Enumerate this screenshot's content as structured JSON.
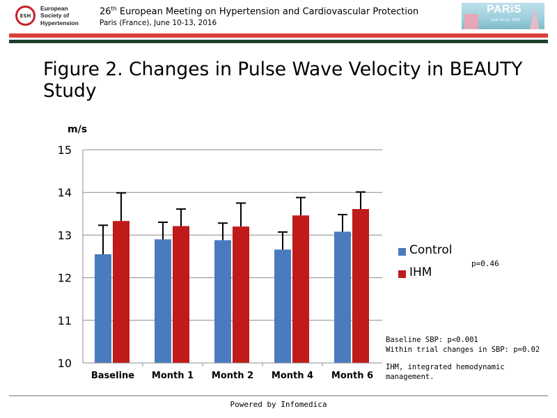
{
  "header": {
    "org_line1": "European",
    "org_line2": "Society of",
    "org_line3": "Hypertension",
    "org_abbrev": "ESH",
    "meeting_prefix": "26",
    "meeting_sup": "th",
    "meeting_rest": " European Meeting on Hypertension and Cardiovascular Protection",
    "meeting_subtitle": "Paris (France), June 10-13, 2016",
    "banner_word": "PARiS",
    "banner_date": "June 10-13, 2016"
  },
  "slide": {
    "title": "Figure 2. Changes in Pulse Wave Velocity in BEAUTY Study",
    "p_value": "p=0.46",
    "note_line1": "Baseline SBP: p<0.001",
    "note_line2": "Within trial changes in SBP: p=0.02",
    "note_line3": "IHM, integrated hemodynamic",
    "note_line4": "management."
  },
  "footer": {
    "text": "Powered by Infomedica"
  },
  "chart_data": {
    "type": "bar",
    "title": "",
    "ylabel": "m/s",
    "xlabel": "",
    "categories": [
      "Baseline",
      "Month 1",
      "Month 2",
      "Month 4",
      "Month 6"
    ],
    "ylim": [
      10,
      15
    ],
    "yticks": [
      10,
      11,
      12,
      13,
      14,
      15
    ],
    "grid": true,
    "legend_position": "right",
    "series": [
      {
        "name": "Control",
        "color": "#4b7bbf",
        "values": [
          12.55,
          12.9,
          12.88,
          12.66,
          13.08
        ],
        "error_upper": [
          13.23,
          13.3,
          13.28,
          13.07,
          13.48
        ]
      },
      {
        "name": "IHM",
        "color": "#c01a1a",
        "values": [
          13.33,
          13.21,
          13.2,
          13.46,
          13.61
        ],
        "error_upper": [
          13.99,
          13.61,
          13.75,
          13.88,
          14.01
        ]
      }
    ]
  }
}
